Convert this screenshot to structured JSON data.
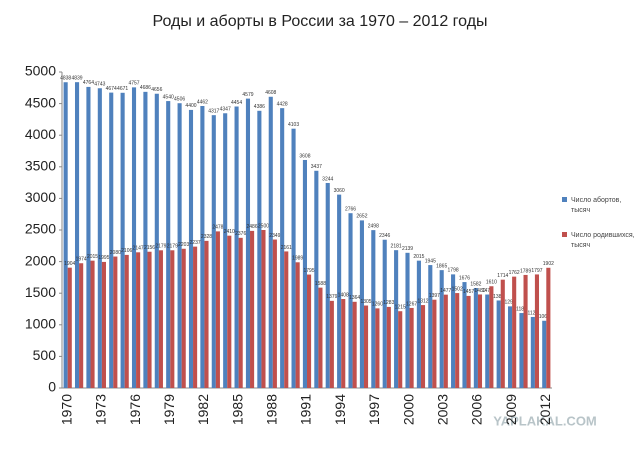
{
  "chart_data": {
    "type": "bar",
    "title": "Роды и аборты в России за 1970 – 2012 годы",
    "categories": [
      "1970",
      null,
      null,
      "1973",
      null,
      null,
      "1976",
      null,
      null,
      "1979",
      null,
      null,
      "1982",
      null,
      null,
      "1985",
      null,
      null,
      "1988",
      null,
      null,
      "1991",
      null,
      null,
      "1994",
      null,
      null,
      "1997",
      null,
      null,
      "2000",
      null,
      null,
      "2003",
      null,
      null,
      "2006",
      null,
      null,
      "2009",
      null,
      null,
      "2012"
    ],
    "series": [
      {
        "name": "Число абортов, тысяч",
        "color": "#4f81bd",
        "values": [
          4838,
          4839,
          4764,
          4743,
          4674,
          4671,
          4757,
          4686,
          4656,
          4540,
          4506,
          4400,
          4462,
          4317,
          4347,
          4454,
          4579,
          4386,
          4608,
          4428,
          4103,
          3608,
          3437,
          3244,
          3060,
          2766,
          2652,
          2498,
          2346,
          2181,
          2139,
          2015,
          1945,
          1865,
          1798,
          1676,
          1582,
          1479,
          1385,
          1292,
          1186,
          1124,
          1064
        ]
      },
      {
        "name": "Число родившихся, тысяч",
        "color": "#c0504d",
        "values": [
          1904,
          1974,
          2015,
          1995,
          2080,
          2106,
          2147,
          2156,
          2179,
          2179,
          2203,
          2237,
          2328,
          2478,
          2410,
          2376,
          2486,
          2500,
          2349,
          2161,
          1989,
          1795,
          1588,
          1379,
          1408,
          1364,
          1305,
          1260,
          1283,
          1215,
          1267,
          1312,
          1397,
          1477,
          1502,
          1457,
          1480,
          1610,
          1714,
          1762,
          1789,
          1797,
          1902
        ]
      }
    ],
    "ylim": [
      0,
      5000
    ],
    "yticks": [
      0,
      500,
      1000,
      1500,
      2000,
      2500,
      3000,
      3500,
      4000,
      4500,
      5000
    ],
    "legend": "right",
    "watermark": "YAPLAKAL.COM"
  }
}
